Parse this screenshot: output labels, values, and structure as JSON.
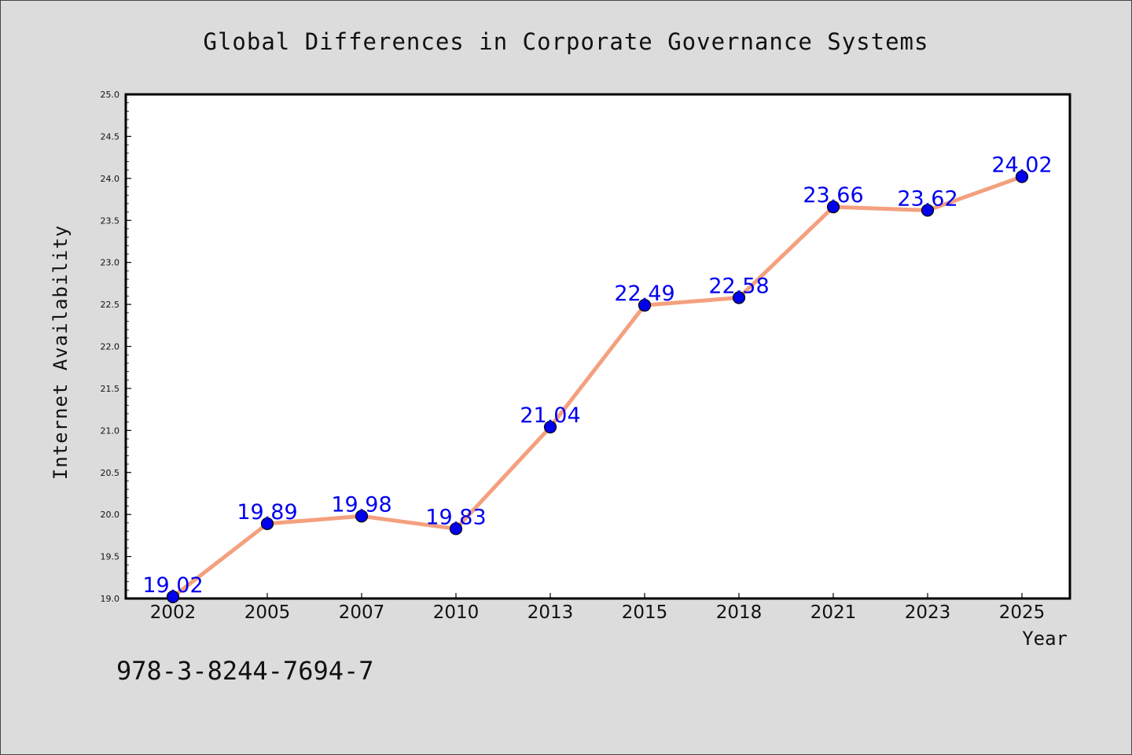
{
  "chart_data": {
    "type": "line",
    "title": "Global Differences in Corporate Governance Systems",
    "xlabel": "Year",
    "ylabel": "Internet Availability",
    "categories": [
      "2002",
      "2005",
      "2007",
      "2010",
      "2013",
      "2015",
      "2018",
      "2021",
      "2023",
      "2025"
    ],
    "values": [
      19.02,
      19.89,
      19.98,
      19.83,
      21.04,
      22.49,
      22.58,
      23.66,
      23.62,
      24.02
    ],
    "data_labels": [
      "19.02",
      "19.89",
      "19.98",
      "19.83",
      "21.04",
      "22.49",
      "22.58",
      "23.66",
      "23.62",
      "24.02"
    ],
    "ylim": [
      19.0,
      25.0
    ],
    "yticks": [
      "19.0",
      "19.5",
      "20.0",
      "20.5",
      "21.0",
      "21.5",
      "22.0",
      "22.5",
      "23.0",
      "23.5",
      "24.0",
      "24.5",
      "25.0"
    ],
    "grid": false,
    "line_color": "#f4a07f",
    "marker_color": "#0000ee",
    "label_color": "#0000ee",
    "annotation": "978-3-8244-7694-7"
  }
}
